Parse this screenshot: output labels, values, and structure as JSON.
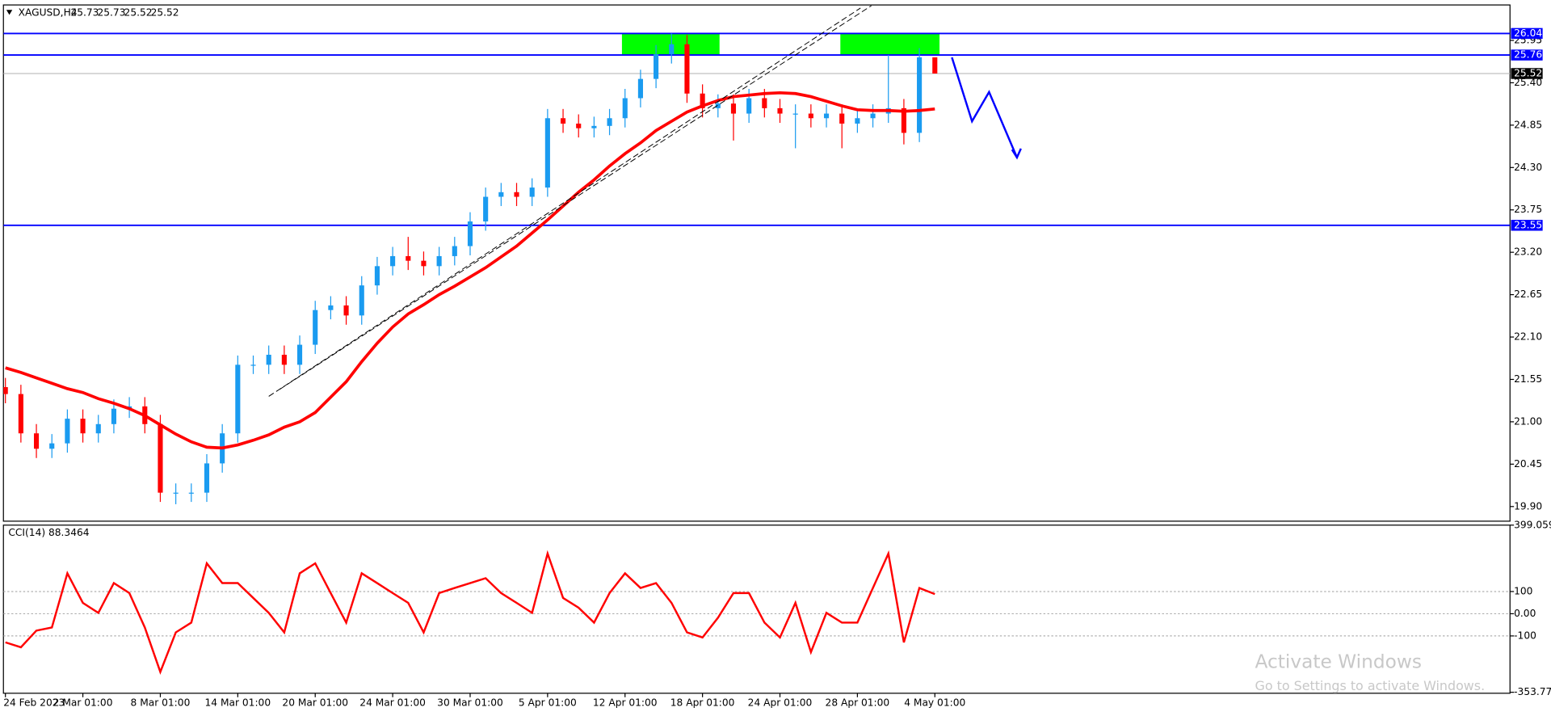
{
  "chart_data": [
    {
      "type": "candlestick",
      "title": "XAGUSD,H4",
      "categories": [
        "24 Feb 2023",
        null,
        null,
        null,
        null,
        "2 Mar 01:00",
        null,
        null,
        null,
        null,
        "8 Mar 01:00",
        null,
        null,
        null,
        null,
        "14 Mar 01:00",
        null,
        null,
        null,
        null,
        "20 Mar 01:00",
        null,
        null,
        null,
        null,
        "24 Mar 01:00",
        null,
        null,
        null,
        null,
        "30 Mar 01:00",
        null,
        null,
        null,
        null,
        "5 Apr 01:00",
        null,
        null,
        null,
        null,
        "12 Apr 01:00",
        null,
        null,
        null,
        null,
        "18 Apr 01:00",
        null,
        null,
        null,
        null,
        "24 Apr 01:00",
        null,
        null,
        null,
        null,
        "28 Apr 01:00",
        null,
        null,
        null,
        null,
        "4 May 01:00"
      ],
      "open": [
        21.45,
        21.36,
        20.85,
        20.65,
        20.72,
        21.04,
        20.85,
        20.97,
        21.17,
        21.2,
        20.97,
        20.08,
        20.08,
        20.08,
        20.46,
        20.85,
        21.74,
        21.74,
        21.87,
        21.74,
        22.0,
        22.45,
        22.51,
        22.38,
        22.77,
        23.02,
        23.15,
        23.09,
        23.02,
        23.15,
        23.28,
        23.6,
        23.92,
        23.98,
        23.92,
        24.04,
        24.94,
        24.87,
        24.81,
        24.84,
        24.94,
        25.2,
        25.45,
        25.77,
        25.9,
        25.26,
        25.07,
        25.13,
        25.0,
        25.2,
        25.07,
        25.0,
        25.0,
        24.94,
        25.0,
        24.87,
        24.94,
        25.0,
        25.07,
        24.75,
        25.73
      ],
      "high": [
        21.57,
        21.48,
        20.97,
        20.84,
        21.16,
        21.16,
        21.09,
        21.29,
        21.32,
        21.32,
        21.09,
        20.2,
        20.2,
        20.58,
        20.97,
        21.86,
        21.86,
        21.99,
        21.99,
        22.12,
        22.57,
        22.63,
        22.63,
        22.89,
        23.14,
        23.27,
        23.4,
        23.21,
        23.27,
        23.4,
        23.72,
        24.04,
        24.1,
        24.1,
        24.16,
        25.06,
        25.06,
        24.99,
        24.96,
        25.06,
        25.32,
        25.57,
        25.89,
        26.04,
        26.02,
        25.38,
        25.25,
        25.25,
        25.32,
        25.32,
        25.19,
        25.12,
        25.12,
        25.12,
        25.12,
        25.06,
        25.12,
        25.76,
        25.19,
        25.85,
        25.73
      ],
      "low": [
        21.24,
        20.73,
        20.53,
        20.53,
        20.6,
        20.73,
        20.73,
        20.85,
        21.05,
        20.85,
        19.96,
        19.93,
        19.96,
        19.96,
        20.34,
        20.73,
        21.62,
        21.62,
        21.62,
        21.62,
        21.88,
        22.33,
        22.26,
        22.26,
        22.65,
        22.9,
        22.97,
        22.9,
        22.9,
        23.03,
        23.16,
        23.48,
        23.8,
        23.8,
        23.8,
        23.92,
        24.75,
        24.69,
        24.69,
        24.72,
        24.82,
        25.08,
        25.33,
        25.65,
        25.14,
        24.95,
        24.95,
        24.65,
        24.88,
        24.95,
        24.88,
        24.55,
        24.82,
        24.82,
        24.55,
        24.75,
        24.82,
        24.88,
        24.6,
        24.63,
        25.52
      ],
      "close": [
        21.36,
        20.85,
        20.65,
        20.72,
        21.04,
        20.85,
        20.97,
        21.17,
        21.2,
        20.97,
        20.08,
        20.08,
        20.08,
        20.46,
        20.85,
        21.74,
        21.74,
        21.87,
        21.74,
        22.0,
        22.45,
        22.51,
        22.38,
        22.77,
        23.02,
        23.15,
        23.09,
        23.02,
        23.15,
        23.28,
        23.6,
        23.92,
        23.98,
        23.92,
        24.04,
        24.94,
        24.87,
        24.81,
        24.84,
        24.94,
        25.2,
        25.45,
        25.77,
        25.9,
        25.26,
        25.07,
        25.13,
        25.0,
        25.2,
        25.07,
        25.0,
        25.0,
        24.94,
        25.0,
        24.87,
        24.94,
        25.0,
        25.07,
        24.75,
        25.73,
        25.52
      ],
      "up_color": "#1a9bf0",
      "down_color": "#ff0000",
      "ma": {
        "color": "#ff0000",
        "values": [
          21.7,
          21.64,
          21.57,
          21.5,
          21.43,
          21.38,
          21.3,
          21.24,
          21.17,
          21.08,
          20.96,
          20.84,
          20.74,
          20.67,
          20.66,
          20.7,
          20.76,
          20.83,
          20.93,
          21.0,
          21.12,
          21.32,
          21.52,
          21.78,
          22.02,
          22.23,
          22.4,
          22.52,
          22.65,
          22.76,
          22.88,
          23.0,
          23.14,
          23.28,
          23.45,
          23.62,
          23.8,
          23.98,
          24.14,
          24.32,
          24.48,
          24.62,
          24.78,
          24.9,
          25.02,
          25.1,
          25.17,
          25.22,
          25.24,
          25.26,
          25.27,
          25.26,
          25.22,
          25.16,
          25.1,
          25.05,
          25.04,
          25.04,
          25.03,
          25.04,
          25.06
        ]
      },
      "levels": [
        {
          "value": 26.04,
          "color": "#0000ff"
        },
        {
          "value": 25.76,
          "color": "#0000ff"
        },
        {
          "value": 23.55,
          "color": "#0000ff"
        },
        {
          "value": 25.52,
          "color": "#000000"
        }
      ],
      "zones": [
        {
          "x": [
            39.8,
            46.1
          ],
          "y": [
            25.76,
            26.04
          ],
          "color": "#00ff00"
        },
        {
          "x": [
            53.9,
            60.3
          ],
          "y": [
            25.76,
            26.04
          ],
          "color": "#00ff00"
        }
      ],
      "trendlines": [
        [
          [
            17.0,
            21.33
          ],
          [
            55.2,
            26.37
          ]
        ],
        [
          [
            17.7,
            21.42
          ],
          [
            55.9,
            26.4
          ]
        ]
      ],
      "forecast_path": {
        "color": "#0000ff",
        "x": [
          61.1,
          62.4,
          63.5,
          65.3
        ],
        "y": [
          25.73,
          24.9,
          25.28,
          24.43
        ]
      },
      "ylim": [
        19.71,
        26.41
      ],
      "yticks": [
        25.95,
        {
          "value": 25.4,
          "label": "25.40"
        },
        24.85,
        {
          "value": 24.3,
          "label": "24.30"
        },
        23.75,
        {
          "value": 23.2,
          "label": "23.20"
        },
        22.65,
        {
          "value": 22.1,
          "label": "22.10"
        },
        21.55,
        {
          "value": 21,
          "label": "21.00"
        },
        20.45,
        {
          "value": 19.9,
          "label": "19.90"
        }
      ]
    },
    {
      "type": "line",
      "title": "CCI(14) 88.3464",
      "color": "#ff0000",
      "values": [
        -129,
        -151,
        -76,
        -62,
        182,
        49,
        4,
        138,
        93,
        -62,
        -262,
        -84,
        -40,
        227,
        138,
        138,
        71,
        4,
        -84,
        182,
        227,
        93,
        -40,
        182,
        138,
        93,
        49,
        -84,
        93,
        116,
        138,
        160,
        93,
        49,
        4,
        271,
        71,
        27,
        -40,
        93,
        182,
        116,
        138,
        49,
        -84,
        -107,
        -18,
        93,
        93,
        -40,
        -107,
        49,
        -173,
        4,
        -40,
        -40,
        116,
        271,
        -129,
        116,
        88.3464
      ],
      "ylim": [
        -353.774,
        399.059
      ],
      "yticks": [
        399.059,
        100,
        {
          "value": 0,
          "label": "0.00"
        },
        -100,
        -353.774
      ]
    }
  ],
  "overlay": {
    "watermark_title": "Activate Windows",
    "watermark_text": "Go to Settings to activate Windows."
  }
}
